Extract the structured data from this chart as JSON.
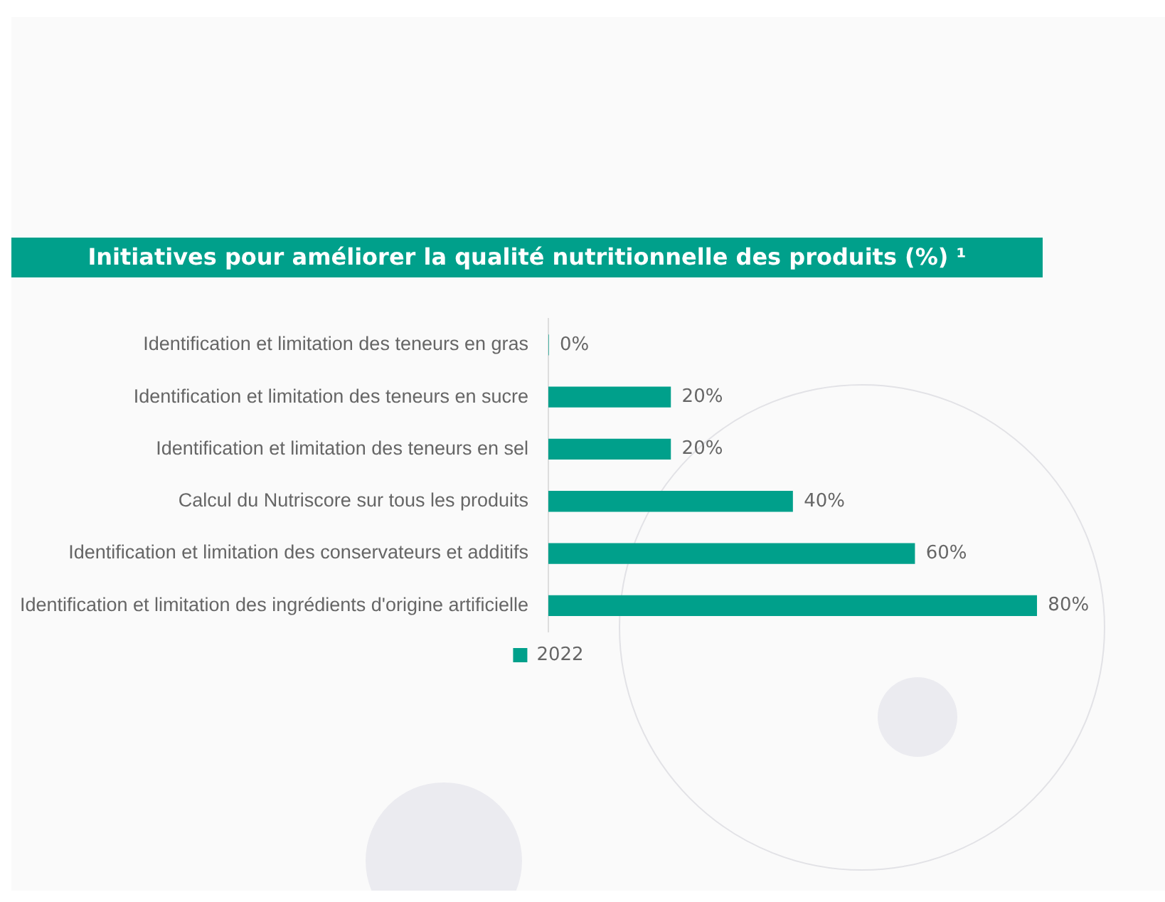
{
  "chart_data": {
    "type": "bar",
    "orientation": "horizontal",
    "title": "Initiatives pour améliorer la qualité nutritionnelle des produits (%) ¹",
    "categories": [
      "Identification et limitation des teneurs en gras",
      "Identification et limitation des teneurs en sucre",
      "Identification et limitation des teneurs en sel",
      "Calcul du Nutriscore sur tous les produits",
      "Identification et limitation des conservateurs et additifs",
      "Identification et limitation des ingrédients d'origine artificielle"
    ],
    "series": [
      {
        "name": "2022",
        "color": "#00a08b",
        "values": [
          0,
          20,
          20,
          40,
          60,
          80
        ],
        "value_labels": [
          "0%",
          "20%",
          "20%",
          "40%",
          "60%",
          "80%"
        ]
      }
    ],
    "tick_labels": "y",
    "grid": false,
    "legend": "bottom"
  }
}
